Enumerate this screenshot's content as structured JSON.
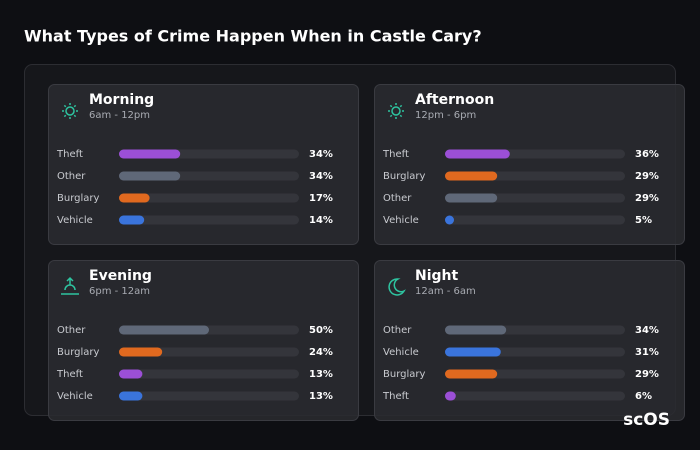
{
  "title": "What Types of Crime Happen When in Castle Cary?",
  "logo": "scOS",
  "chart_data": [
    {
      "type": "bar",
      "orientation": "horizontal",
      "title": "Morning",
      "subtitle": "6am - 12pm",
      "categories": [
        "Theft",
        "Other",
        "Burglary",
        "Vehicle"
      ],
      "values": [
        34,
        34,
        17,
        14
      ],
      "value_labels": [
        "34%",
        "34%",
        "17%",
        "14%"
      ],
      "colors": [
        "#9b4fd6",
        "#5f6878",
        "#e0691f",
        "#3a74dc"
      ],
      "xlim": [
        0,
        100
      ]
    },
    {
      "type": "bar",
      "orientation": "horizontal",
      "title": "Afternoon",
      "subtitle": "12pm - 6pm",
      "categories": [
        "Theft",
        "Burglary",
        "Other",
        "Vehicle"
      ],
      "values": [
        36,
        29,
        29,
        5
      ],
      "value_labels": [
        "36%",
        "29%",
        "29%",
        "5%"
      ],
      "colors": [
        "#9b4fd6",
        "#e0691f",
        "#5f6878",
        "#3a74dc"
      ],
      "xlim": [
        0,
        100
      ]
    },
    {
      "type": "bar",
      "orientation": "horizontal",
      "title": "Evening",
      "subtitle": "6pm - 12am",
      "categories": [
        "Other",
        "Burglary",
        "Theft",
        "Vehicle"
      ],
      "values": [
        50,
        24,
        13,
        13
      ],
      "value_labels": [
        "50%",
        "24%",
        "13%",
        "13%"
      ],
      "colors": [
        "#5f6878",
        "#e0691f",
        "#9b4fd6",
        "#3a74dc"
      ],
      "xlim": [
        0,
        100
      ]
    },
    {
      "type": "bar",
      "orientation": "horizontal",
      "title": "Night",
      "subtitle": "12am - 6am",
      "categories": [
        "Other",
        "Vehicle",
        "Burglary",
        "Theft"
      ],
      "values": [
        34,
        31,
        29,
        6
      ],
      "value_labels": [
        "34%",
        "31%",
        "29%",
        "6%"
      ],
      "colors": [
        "#5f6878",
        "#3a74dc",
        "#e0691f",
        "#9b4fd6"
      ],
      "xlim": [
        0,
        100
      ]
    }
  ]
}
